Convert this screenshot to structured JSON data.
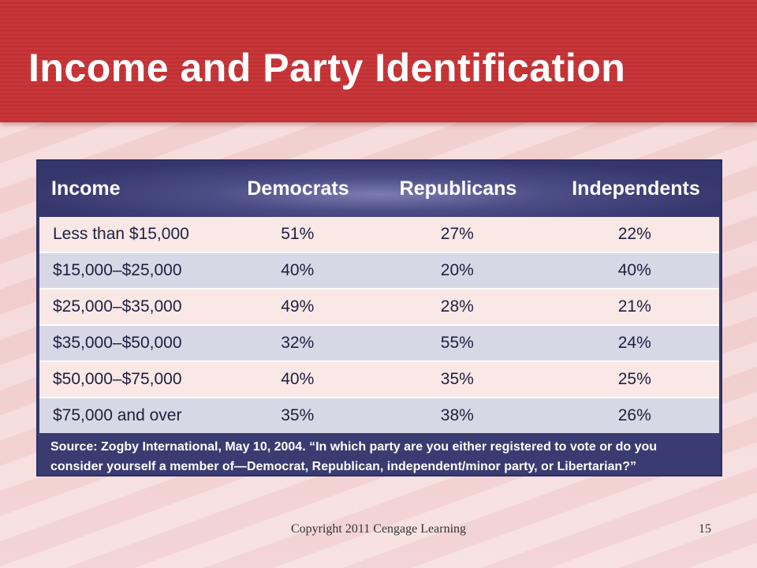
{
  "slide": {
    "title": "Income and Party Identification",
    "footer_copyright": "Copyright 2011 Cengage Learning",
    "page_number": "15"
  },
  "table": {
    "headers": [
      "Income",
      "Democrats",
      "Republicans",
      "Independents"
    ],
    "rows": [
      [
        "Less than $15,000",
        "51%",
        "27%",
        "22%"
      ],
      [
        "$15,000–$25,000",
        "40%",
        "20%",
        "40%"
      ],
      [
        "$25,000–$35,000",
        "49%",
        "28%",
        "21%"
      ],
      [
        "$35,000–$50,000",
        "32%",
        "55%",
        "24%"
      ],
      [
        "$50,000–$75,000",
        "40%",
        "35%",
        "25%"
      ],
      [
        "$75,000 and over",
        "35%",
        "38%",
        "26%"
      ]
    ],
    "source_line1": "Source: Zogby International, May 10, 2004. “In which party are you either registered to vote or do you",
    "source_line2": "consider yourself a member of—Democrat, Republican, independent/minor party, or Libertarian?”"
  },
  "colors": {
    "title_bar": "#c7373a",
    "table_header": "#3a3b70",
    "row_odd": "#f9e8e6",
    "row_even": "#d7d7e6"
  }
}
